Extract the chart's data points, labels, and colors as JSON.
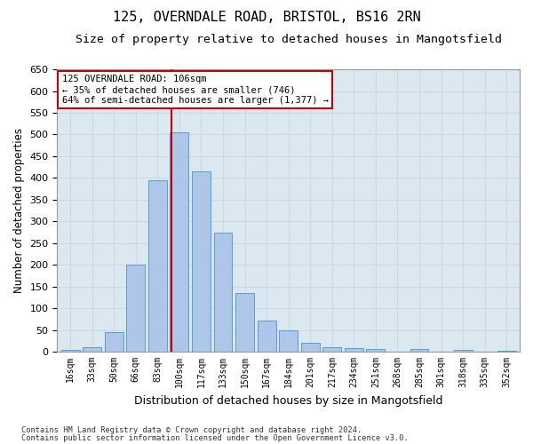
{
  "title1": "125, OVERNDALE ROAD, BRISTOL, BS16 2RN",
  "title2": "Size of property relative to detached houses in Mangotsfield",
  "xlabel": "Distribution of detached houses by size in Mangotsfield",
  "ylabel": "Number of detached properties",
  "categories": [
    "16sqm",
    "33sqm",
    "50sqm",
    "66sqm",
    "83sqm",
    "100sqm",
    "117sqm",
    "133sqm",
    "150sqm",
    "167sqm",
    "184sqm",
    "201sqm",
    "217sqm",
    "234sqm",
    "251sqm",
    "268sqm",
    "285sqm",
    "301sqm",
    "318sqm",
    "335sqm",
    "352sqm"
  ],
  "values": [
    5,
    10,
    45,
    200,
    395,
    505,
    415,
    275,
    135,
    72,
    50,
    20,
    10,
    8,
    6,
    0,
    7,
    0,
    5,
    0,
    2
  ],
  "bar_color": "#aec6e8",
  "bar_edge_color": "#5b9bd5",
  "vline_color": "#cc0000",
  "annotation_text": "125 OVERNDALE ROAD: 106sqm\n← 35% of detached houses are smaller (746)\n64% of semi-detached houses are larger (1,377) →",
  "annotation_box_color": "#ffffff",
  "annotation_box_edge": "#cc0000",
  "ylim": [
    0,
    650
  ],
  "yticks": [
    0,
    50,
    100,
    150,
    200,
    250,
    300,
    350,
    400,
    450,
    500,
    550,
    600,
    650
  ],
  "grid_color": "#c8d8e8",
  "bg_color": "#dce8f0",
  "footnote1": "Contains HM Land Registry data © Crown copyright and database right 2024.",
  "footnote2": "Contains public sector information licensed under the Open Government Licence v3.0.",
  "title1_fontsize": 11,
  "title2_fontsize": 9.5,
  "xlabel_fontsize": 9,
  "ylabel_fontsize": 8.5,
  "bar_width": 0.85,
  "vline_bar_index": 5
}
